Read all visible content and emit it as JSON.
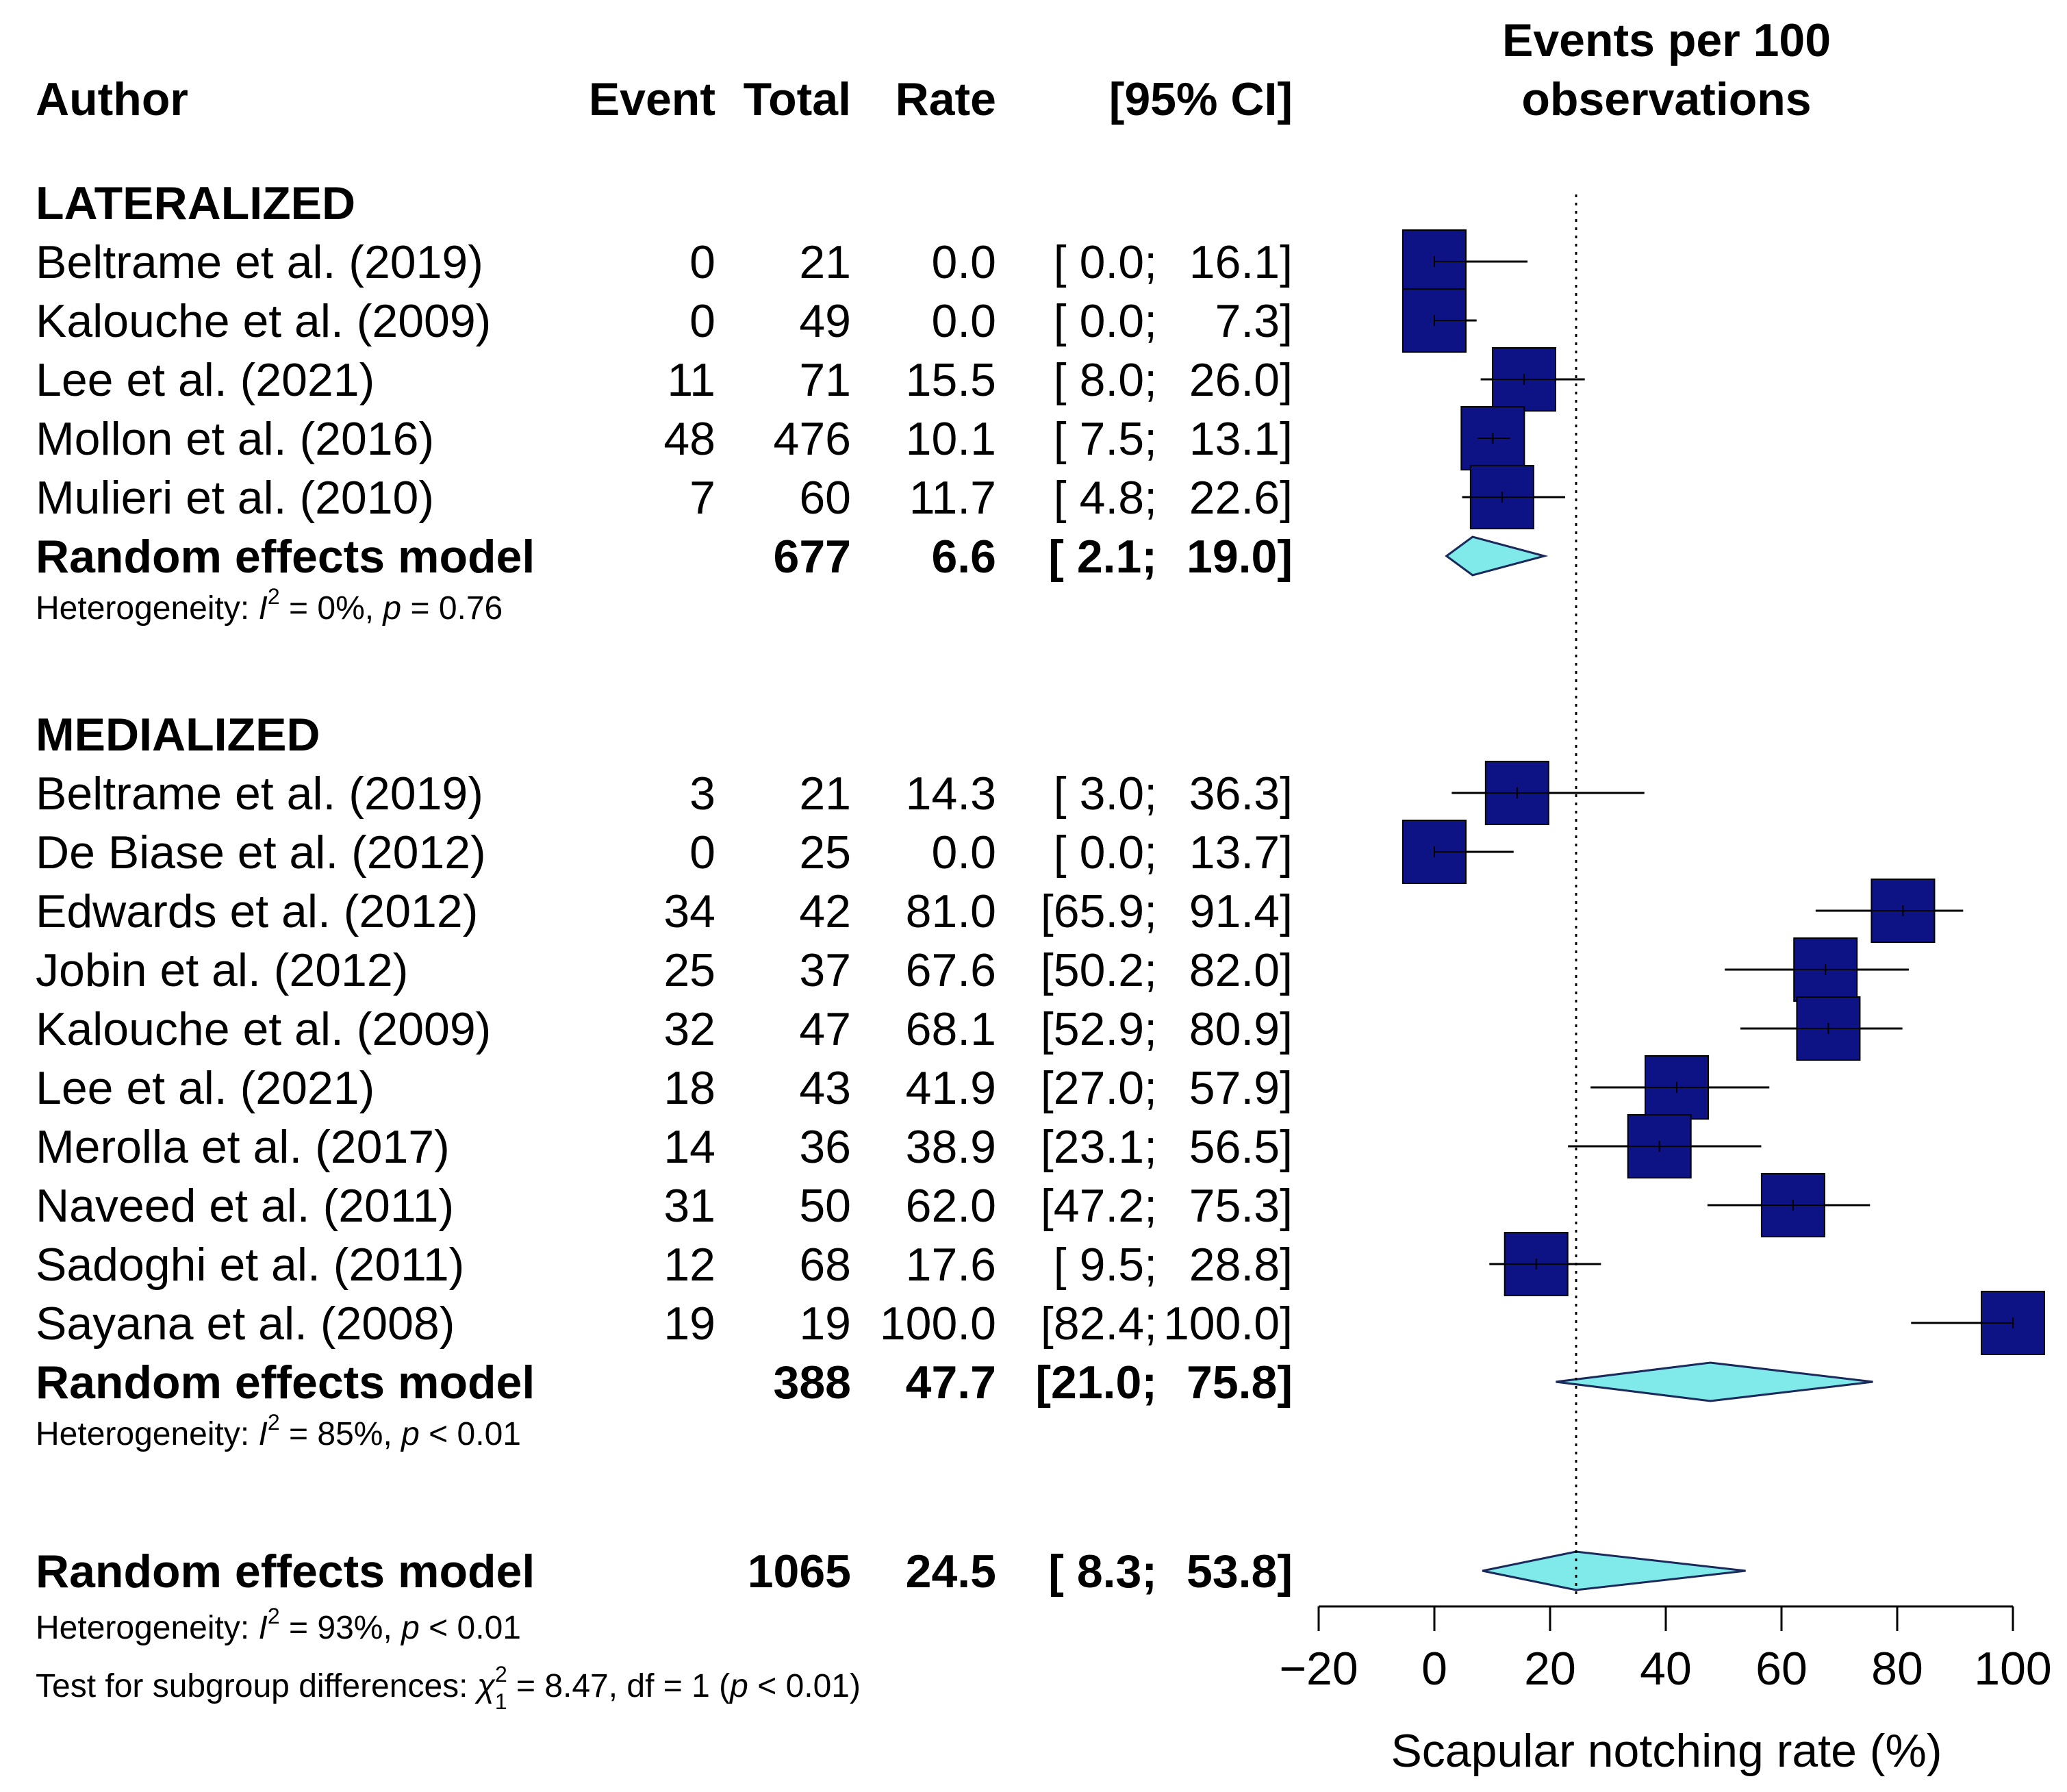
{
  "chart_data": {
    "type": "forest",
    "headers": {
      "author": "Author",
      "event": "Event",
      "total": "Total",
      "rate": "Rate",
      "ci": "[95% CI]",
      "plot_title_line1": "Events per 100",
      "plot_title_line2": "observations"
    },
    "subgroups": [
      {
        "name": "LATERALIZED",
        "studies": [
          {
            "author": "Beltrame et al. (2019)",
            "event": "0",
            "total": "21",
            "rate_text": "0.0",
            "ci_low_text": "[ 0.0;",
            "ci_high_text": "16.1]",
            "rate": 0.0,
            "ci": [
              0.0,
              16.1
            ],
            "box": 1.0
          },
          {
            "author": "Kalouche et al. (2009)",
            "event": "0",
            "total": "49",
            "rate_text": "0.0",
            "ci_low_text": "[ 0.0;",
            "ci_high_text": "7.3]",
            "rate": 0.0,
            "ci": [
              0.0,
              7.3
            ],
            "box": 1.0
          },
          {
            "author": "Lee et al. (2021)",
            "event": "11",
            "total": "71",
            "rate_text": "15.5",
            "ci_low_text": "[ 8.0;",
            "ci_high_text": "26.0]",
            "rate": 15.5,
            "ci": [
              8.0,
              26.0
            ],
            "box": 1.0
          },
          {
            "author": "Mollon et al. (2016)",
            "event": "48",
            "total": "476",
            "rate_text": "10.1",
            "ci_low_text": "[ 7.5;",
            "ci_high_text": "13.1]",
            "rate": 10.1,
            "ci": [
              7.5,
              13.1
            ],
            "box": 1.0
          },
          {
            "author": "Mulieri et al. (2010)",
            "event": "7",
            "total": "60",
            "rate_text": "11.7",
            "ci_low_text": "[ 4.8;",
            "ci_high_text": "22.6]",
            "rate": 11.7,
            "ci": [
              4.8,
              22.6
            ],
            "box": 1.0
          }
        ],
        "model": {
          "label": "Random effects model",
          "total": "677",
          "rate_text": "6.6",
          "ci_low_text": "[ 2.1;",
          "ci_high_text": "19.0]",
          "rate": 6.6,
          "ci": [
            2.1,
            19.0
          ]
        },
        "heterogeneity": {
          "prefix": "Heterogeneity: ",
          "i2_symbol": "I",
          "i2_sup": "2",
          "i2_rest": " = 0%, ",
          "p_symbol": "p",
          "p_rest": " = 0.76"
        }
      },
      {
        "name": "MEDIALIZED",
        "studies": [
          {
            "author": "Beltrame et al. (2019)",
            "event": "3",
            "total": "21",
            "rate_text": "14.3",
            "ci_low_text": "[ 3.0;",
            "ci_high_text": "36.3]",
            "rate": 14.3,
            "ci": [
              3.0,
              36.3
            ],
            "box": 1.0
          },
          {
            "author": "De Biase et al. (2012)",
            "event": "0",
            "total": "25",
            "rate_text": "0.0",
            "ci_low_text": "[ 0.0;",
            "ci_high_text": "13.7]",
            "rate": 0.0,
            "ci": [
              0.0,
              13.7
            ],
            "box": 1.0
          },
          {
            "author": "Edwards et al. (2012)",
            "event": "34",
            "total": "42",
            "rate_text": "81.0",
            "ci_low_text": "[65.9;",
            "ci_high_text": "91.4]",
            "rate": 81.0,
            "ci": [
              65.9,
              91.4
            ],
            "box": 1.0
          },
          {
            "author": "Jobin et al. (2012)",
            "event": "25",
            "total": "37",
            "rate_text": "67.6",
            "ci_low_text": "[50.2;",
            "ci_high_text": "82.0]",
            "rate": 67.6,
            "ci": [
              50.2,
              82.0
            ],
            "box": 1.0
          },
          {
            "author": "Kalouche et al. (2009)",
            "event": "32",
            "total": "47",
            "rate_text": "68.1",
            "ci_low_text": "[52.9;",
            "ci_high_text": "80.9]",
            "rate": 68.1,
            "ci": [
              52.9,
              80.9
            ],
            "box": 1.0
          },
          {
            "author": "Lee et al. (2021)",
            "event": "18",
            "total": "43",
            "rate_text": "41.9",
            "ci_low_text": "[27.0;",
            "ci_high_text": "57.9]",
            "rate": 41.9,
            "ci": [
              27.0,
              57.9
            ],
            "box": 1.0
          },
          {
            "author": "Merolla et al. (2017)",
            "event": "14",
            "total": "36",
            "rate_text": "38.9",
            "ci_low_text": "[23.1;",
            "ci_high_text": "56.5]",
            "rate": 38.9,
            "ci": [
              23.1,
              56.5
            ],
            "box": 1.0
          },
          {
            "author": "Naveed et al. (2011)",
            "event": "31",
            "total": "50",
            "rate_text": "62.0",
            "ci_low_text": "[47.2;",
            "ci_high_text": "75.3]",
            "rate": 62.0,
            "ci": [
              47.2,
              75.3
            ],
            "box": 1.0
          },
          {
            "author": "Sadoghi et al. (2011)",
            "event": "12",
            "total": "68",
            "rate_text": "17.6",
            "ci_low_text": "[ 9.5;",
            "ci_high_text": "28.8]",
            "rate": 17.6,
            "ci": [
              9.5,
              28.8
            ],
            "box": 1.0
          },
          {
            "author": "Sayana et al. (2008)",
            "event": "19",
            "total": "19",
            "rate_text": "100.0",
            "ci_low_text": "[82.4;",
            "ci_high_text": "100.0]",
            "rate": 100.0,
            "ci": [
              82.4,
              100.0
            ],
            "box": 1.0
          }
        ],
        "model": {
          "label": "Random effects model",
          "total": "388",
          "rate_text": "47.7",
          "ci_low_text": "[21.0;",
          "ci_high_text": "75.8]",
          "rate": 47.7,
          "ci": [
            21.0,
            75.8
          ]
        },
        "heterogeneity": {
          "prefix": "Heterogeneity: ",
          "i2_symbol": "I",
          "i2_sup": "2",
          "i2_rest": " = 85%, ",
          "p_symbol": "p",
          "p_rest": " < 0.01"
        }
      }
    ],
    "overall": {
      "label": "Random effects model",
      "total": "1065",
      "rate_text": "24.5",
      "ci_low_text": "[ 8.3;",
      "ci_high_text": "53.8]",
      "rate": 24.5,
      "ci": [
        8.3,
        53.8
      ],
      "heterogeneity": {
        "prefix": "Heterogeneity: ",
        "i2_symbol": "I",
        "i2_sup": "2",
        "i2_rest": " = 93%, ",
        "p_symbol": "p",
        "p_rest": " < 0.01"
      },
      "subgroup_test": {
        "prefix": "Test for subgroup differences: ",
        "chi_symbol": "χ",
        "chi_sup": "2",
        "chi_sub": "1",
        "rest_a": " = 8.47, df = 1 (",
        "p_symbol": "p",
        "rest_b": " < 0.01)"
      }
    },
    "axis": {
      "xlabel": "Scapular notching rate (%)",
      "ticks": [
        -20,
        0,
        20,
        40,
        60,
        80,
        100
      ],
      "tick_labels": [
        "−20",
        "0",
        "20",
        "40",
        "60",
        "80",
        "100"
      ],
      "xlim": [
        -20,
        100
      ],
      "reference_line": 24.5
    },
    "colors": {
      "study_box": "#0d1285",
      "diamond_fill": "#80eaea",
      "diamond_stroke": "#1a2a5a",
      "ci_line": "#000000"
    }
  }
}
